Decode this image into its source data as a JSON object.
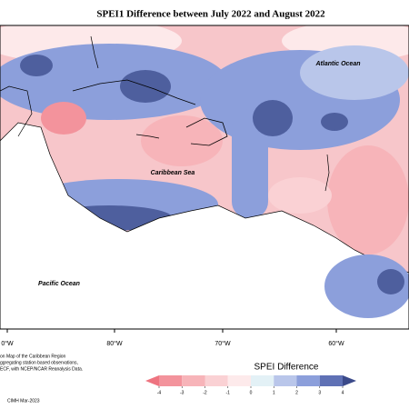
{
  "map": {
    "title": "SPEI1 Difference between July 2022 and August 2022",
    "labels": {
      "atlantic": "Atlantic Ocean",
      "caribbean": "Caribbean Sea",
      "pacific": "Pacific Ocean"
    },
    "lon_ticks": [
      "0°W",
      "80°W",
      "70°W",
      "60°W"
    ]
  },
  "colorbar": {
    "title": "SPEI Difference",
    "ticks": [
      -4,
      -3,
      -2,
      -1,
      0,
      1,
      2,
      3,
      4
    ],
    "colors": [
      "#ee7480",
      "#f3939c",
      "#f7b4b9",
      "#fad1d4",
      "#fdeaeb",
      "#e3f1f6",
      "#b9c6ea",
      "#8c9fdb",
      "#5f71b5",
      "#3b4a8a"
    ]
  },
  "notes": [
    "on Map of the Caribbean Region",
    "ggregating station based observations,",
    "ECF, with NCEP/NCAR Reanalysis Data.",
    "CIMH Mar-2023"
  ]
}
